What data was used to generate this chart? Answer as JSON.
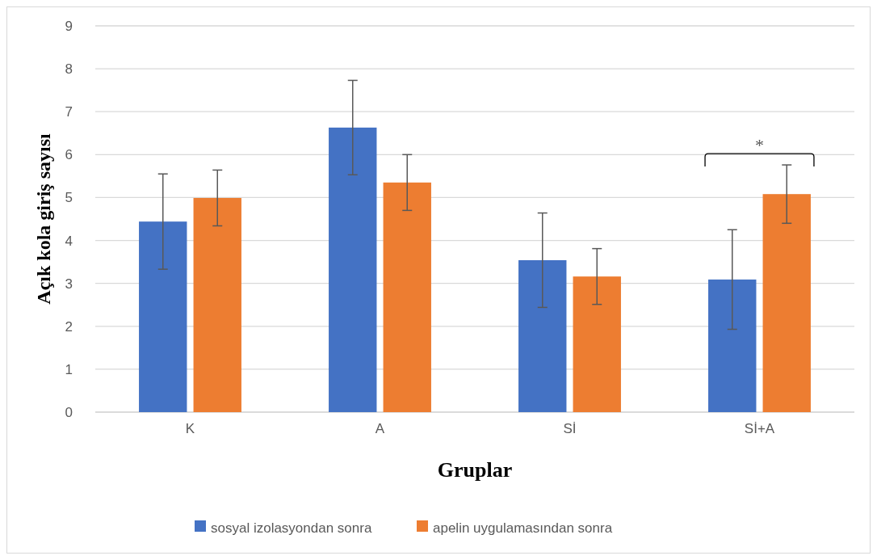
{
  "chart_data": {
    "type": "bar",
    "xlabel": "Gruplar",
    "ylabel": "Açık kola giriş sayısı",
    "categories": [
      "K",
      "A",
      "Sİ",
      "Sİ+A"
    ],
    "series": [
      {
        "name": "sosyal izolasyondan sonra",
        "color": "#4472c4",
        "values": [
          4.44,
          6.63,
          3.54,
          3.09
        ],
        "errors": [
          1.11,
          1.1,
          1.1,
          1.16
        ]
      },
      {
        "name": "apelin uygulamasından sonra",
        "color": "#ed7d31",
        "values": [
          4.99,
          5.35,
          3.16,
          5.08
        ],
        "errors": [
          0.65,
          0.65,
          0.65,
          0.68
        ]
      }
    ],
    "ylim": [
      0,
      9
    ],
    "yticks": [
      0,
      1,
      2,
      3,
      4,
      5,
      6,
      7,
      8,
      9
    ],
    "grid": "y",
    "legend": "bottom",
    "annotations": [
      "*"
    ]
  }
}
